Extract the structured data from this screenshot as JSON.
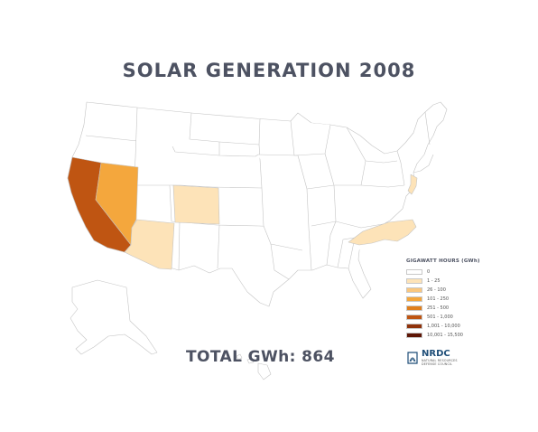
{
  "title": "SOLAR GENERATION 2008",
  "total_label": "TOTAL GWh: 864",
  "legend": {
    "title": "GIGAWATT HOURS (GWh)",
    "items": [
      {
        "label": "0",
        "color": "#ffffff"
      },
      {
        "label": "1 - 25",
        "color": "#fde3b8"
      },
      {
        "label": "26 - 100",
        "color": "#f9c77f"
      },
      {
        "label": "101 - 250",
        "color": "#f4a73d"
      },
      {
        "label": "251 - 500",
        "color": "#e07f1d"
      },
      {
        "label": "501 - 1,000",
        "color": "#bf5512"
      },
      {
        "label": "1,001 - 10,000",
        "color": "#8f320b"
      },
      {
        "label": "10,001 - 15,500",
        "color": "#5e1606"
      }
    ]
  },
  "states": [
    {
      "name": "California",
      "class": "501 - 1,000"
    },
    {
      "name": "Nevada",
      "class": "101 - 250"
    },
    {
      "name": "Arizona",
      "class": "1 - 25"
    },
    {
      "name": "Colorado",
      "class": "1 - 25"
    },
    {
      "name": "New Jersey",
      "class": "1 - 25"
    },
    {
      "name": "North Carolina",
      "class": "1 - 25"
    }
  ],
  "logo": {
    "name": "NRDC",
    "tagline_1": "NATURAL RESOURCES",
    "tagline_2": "DEFENSE COUNCIL",
    "color": "#1f4e78"
  }
}
